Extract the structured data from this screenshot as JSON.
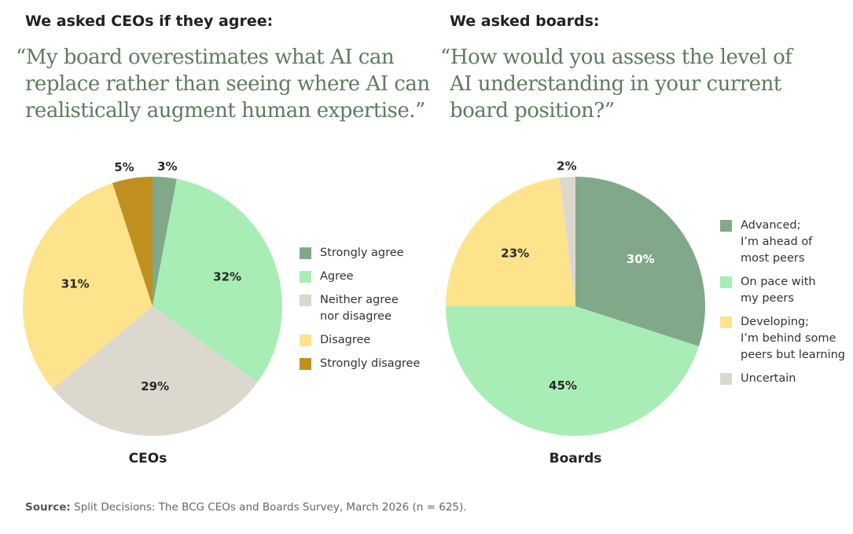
{
  "left": {
    "heading": "We asked CEOs if they agree:",
    "quote_lines": [
      "“My board overestimates what AI can",
      "replace rather than seeing where AI can",
      "realistically augment human expertise.”"
    ],
    "caption": "CEOs"
  },
  "right": {
    "heading": "We asked boards:",
    "quote_lines": [
      "“How would you assess the level of",
      "AI understanding in your current",
      "board position?”"
    ],
    "caption": "Boards"
  },
  "source": {
    "label": "Source:",
    "text": " Split Decisions: The BCG CEOs and Boards Survey, March 2026 (n = 625)."
  },
  "chart_data": [
    {
      "type": "pie",
      "title": "CEOs",
      "slices": [
        {
          "label": "Strongly agree",
          "value": 3,
          "display": "3%",
          "color": "#82a88a"
        },
        {
          "label": "Agree",
          "value": 32,
          "display": "32%",
          "color": "#a8edb6"
        },
        {
          "label": "Neither agree nor disagree",
          "value": 29,
          "display": "29%",
          "color": "#ddd8cd"
        },
        {
          "label": "Disagree",
          "value": 31,
          "display": "31%",
          "color": "#fde38c"
        },
        {
          "label": "Strongly disagree",
          "value": 5,
          "display": "5%",
          "color": "#bf9020"
        }
      ],
      "legend": [
        {
          "lines": [
            "Strongly agree"
          ],
          "color": "#82a88a"
        },
        {
          "lines": [
            "Agree"
          ],
          "color": "#a8edb6"
        },
        {
          "lines": [
            "Neither agree",
            "nor disagree"
          ],
          "color": "#ddd8cd"
        },
        {
          "lines": [
            "Disagree"
          ],
          "color": "#fde38c"
        },
        {
          "lines": [
            "Strongly disagree"
          ],
          "color": "#bf9020"
        }
      ],
      "legend_position": "right"
    },
    {
      "type": "pie",
      "title": "Boards",
      "slices": [
        {
          "label": "Advanced; I’m ahead of most peers",
          "value": 30,
          "display": "30%",
          "color": "#82a88a"
        },
        {
          "label": "On pace with my peers",
          "value": 45,
          "display": "45%",
          "color": "#a8edb6"
        },
        {
          "label": "Developing; I’m behind some peers but learning",
          "value": 23,
          "display": "23%",
          "color": "#fde38c"
        },
        {
          "label": "Uncertain",
          "value": 2,
          "display": "2%",
          "color": "#ddd8cd"
        }
      ],
      "legend": [
        {
          "lines": [
            "Advanced;",
            "I’m ahead of",
            "most peers"
          ],
          "color": "#82a88a"
        },
        {
          "lines": [
            "On pace with",
            "my peers"
          ],
          "color": "#a8edb6"
        },
        {
          "lines": [
            "Developing;",
            "I’m behind some",
            "peers but learning"
          ],
          "color": "#fde38c"
        },
        {
          "lines": [
            "Uncertain"
          ],
          "color": "#ddd8cd"
        }
      ],
      "legend_position": "right"
    }
  ]
}
